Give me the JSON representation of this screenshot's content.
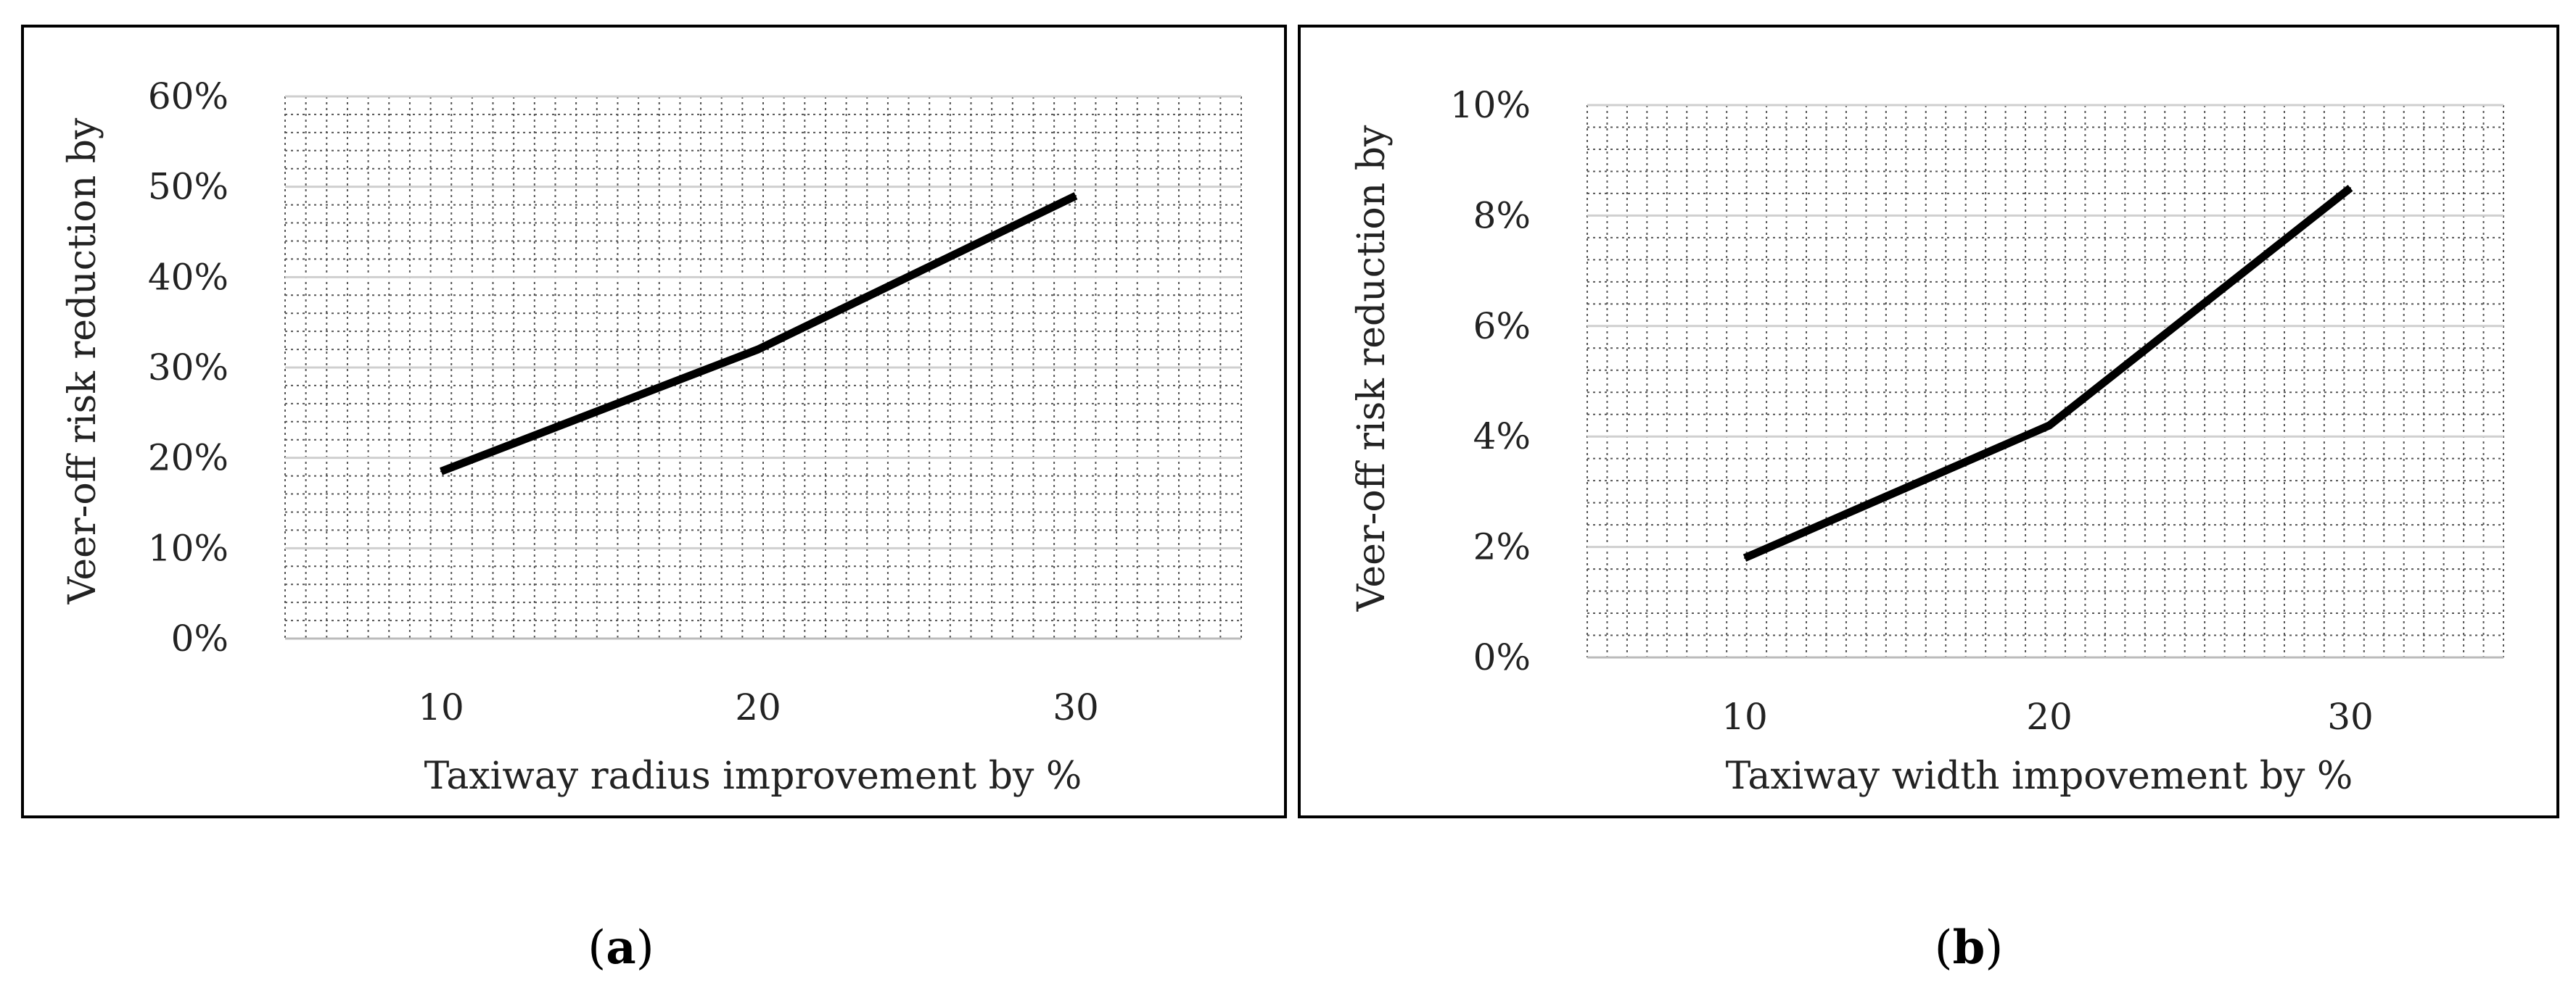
{
  "chart_data": [
    {
      "type": "line",
      "x": [
        10,
        20,
        30
      ],
      "categories": [
        "10",
        "20",
        "30"
      ],
      "series": [
        {
          "values": [
            18.5,
            32,
            49
          ]
        }
      ],
      "xlabel": "Taxiway radius improvement by %",
      "ylabel": "Veer-off risk reduction by",
      "yticks": [
        "0%",
        "10%",
        "20%",
        "30%",
        "40%",
        "50%",
        "60%"
      ],
      "ylim": [
        0,
        60
      ],
      "grid": true,
      "line_color": "#000000",
      "caption": "a"
    },
    {
      "type": "line",
      "x": [
        10,
        20,
        30
      ],
      "categories": [
        "10",
        "20",
        "30"
      ],
      "series": [
        {
          "values": [
            1.8,
            4.2,
            8.5
          ]
        }
      ],
      "xlabel": "Taxiway width impovement by %",
      "ylabel": "Veer-off risk reduction by",
      "yticks": [
        "0%",
        "2%",
        "4%",
        "6%",
        "8%",
        "10%"
      ],
      "ylim": [
        0,
        10
      ],
      "grid": true,
      "line_color": "#000000",
      "caption": "b"
    }
  ]
}
